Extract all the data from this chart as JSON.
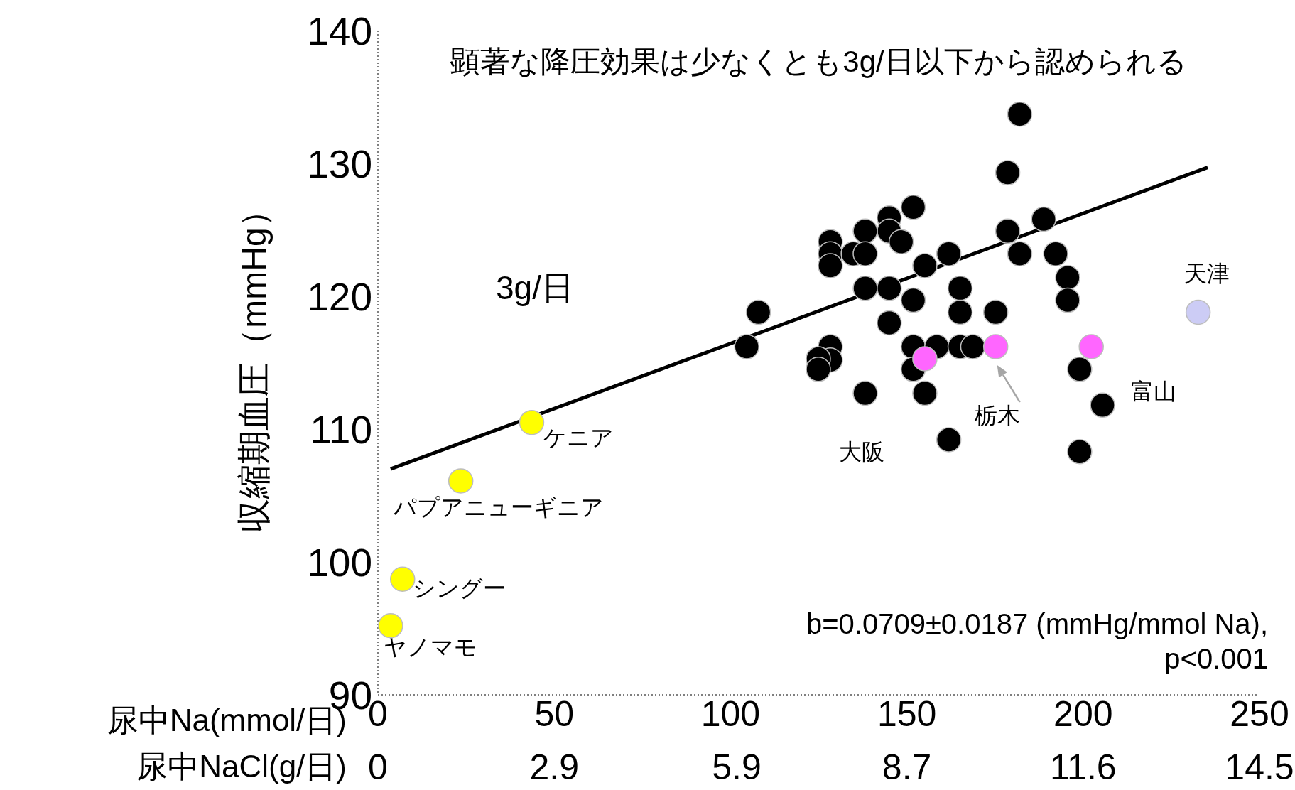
{
  "chart_data": {
    "type": "scatter",
    "title": "顕著な降圧効果は少なくとも3g/日以下から認められる",
    "xlabel": "尿中Na(mmol/日)",
    "x2label": "尿中NaCl(g/日)",
    "ylabel": "収縮期血圧（mmHg）",
    "xlim": [
      0,
      250
    ],
    "xticks": [
      0,
      50,
      100,
      150,
      200,
      250
    ],
    "x2lim": [
      0,
      14.5
    ],
    "x2ticks": [
      0,
      2.9,
      5.9,
      8.7,
      11.6,
      14.5
    ],
    "ylim": [
      90,
      140
    ],
    "yticks": [
      90,
      100,
      110,
      120,
      130,
      140
    ],
    "marker": "circle",
    "series": [
      {
        "color": "#000000",
        "x": [
          182.0,
          178.6,
          151.8,
          145.0,
          145.0,
          148.4,
          138.2,
          128.3,
          128.3,
          128.3,
          134.8,
          138.2,
          161.9,
          155.1,
          178.6,
          188.8,
          182.0,
          192.2,
          195.6,
          195.6,
          138.2,
          145.0,
          151.8,
          165.1,
          165.1,
          175.2,
          145.0,
          107.9,
          104.6,
          128.3,
          128.3,
          124.9,
          124.9,
          151.8,
          158.5,
          165.1,
          168.7,
          151.8,
          138.2,
          155.1,
          161.9,
          199.0,
          199.0,
          205.5
        ],
        "values": [
          133.7,
          129.3,
          126.7,
          125.9,
          124.9,
          124.1,
          124.9,
          124.1,
          123.2,
          122.3,
          123.2,
          123.2,
          123.2,
          122.3,
          124.9,
          125.8,
          123.2,
          123.2,
          121.4,
          119.7,
          120.6,
          120.6,
          119.7,
          120.6,
          118.8,
          118.8,
          118.0,
          118.8,
          116.2,
          116.2,
          115.2,
          115.3,
          114.5,
          116.2,
          116.2,
          116.2,
          116.2,
          114.5,
          112.7,
          112.7,
          109.2,
          114.5,
          108.3,
          111.8
        ]
      },
      {
        "color": "#ffff00",
        "x": [
          43.6,
          23.5,
          7.0,
          3.6
        ],
        "values": [
          110.5,
          106.1,
          98.7,
          95.2
        ]
      },
      {
        "color": "#ff66ff",
        "x": [
          155.1,
          175.2,
          202.3
        ],
        "values": [
          115.3,
          116.2,
          116.2
        ]
      },
      {
        "color": "#ccccf5",
        "x": [
          232.6
        ],
        "values": [
          118.8
        ]
      },
      {
        "type": "line",
        "color": "#000000",
        "marker": "none",
        "line_style": "solid",
        "x": [
          3.6,
          235.3
        ],
        "values": [
          107.0,
          129.7
        ]
      }
    ],
    "annotations": [
      "3g/日",
      "b=0.0709±0.0187 (mmHg/mmol Na),",
      "p<0.001",
      "大阪",
      {
        "text": "ケニア",
        "x": 43.6,
        "y": 110.5
      },
      {
        "text": "パプアニューギニア",
        "x": 23.5,
        "y": 106.1
      },
      {
        "text": "シングー",
        "x": 7.0,
        "y": 98.7
      },
      {
        "text": "ヤノマモ",
        "x": 3.6,
        "y": 95.2
      },
      {
        "text": "栃木",
        "x": 175.2,
        "y": 116.2
      },
      {
        "text": "富山",
        "x": 202.3,
        "y": 116.2
      },
      {
        "text": "天津",
        "x": 232.6,
        "y": 118.8
      }
    ]
  }
}
